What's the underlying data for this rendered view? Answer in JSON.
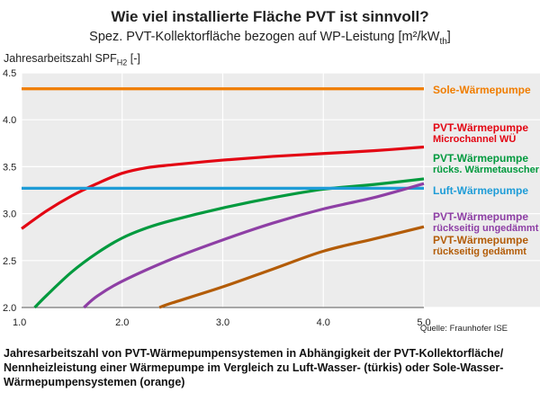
{
  "chart_data": {
    "type": "line",
    "title": "Wie viel installierte Fläche PVT ist sinnvoll?",
    "subtitle": "Spez. PVT-Kollektorfläche bezogen auf WP-Leistung [m²/kW",
    "subtitle_sub": "th",
    "subtitle_end": "]",
    "ylabel": "Jahresarbeitszahl SPF",
    "ylabel_sub": "H2",
    "ylabel_end": " [-]",
    "xlabel": "",
    "xlim": [
      1.0,
      5.0
    ],
    "ylim": [
      2.0,
      4.5
    ],
    "xticks": [
      "1.0",
      "2.0",
      "3.0",
      "4.0",
      "5.0"
    ],
    "yticks": [
      "2.0",
      "2.5",
      "3.0",
      "3.5",
      "4.0",
      "4.5"
    ],
    "grid": true,
    "series": [
      {
        "name": "Sole-Wärmepumpe",
        "color": "#F07D00",
        "label_lines": [
          "Sole-Wärmepumpe"
        ],
        "x": [
          1.0,
          5.0
        ],
        "y": [
          4.33,
          4.33
        ]
      },
      {
        "name": "PVT-Wärmepumpe Microchannel WÜ",
        "color": "#E30613",
        "label_lines": [
          "PVT-Wärmepumpe",
          "Microchannel WÜ"
        ],
        "x": [
          1.0,
          1.25,
          1.5,
          1.75,
          2.0,
          2.25,
          2.5,
          3.0,
          3.5,
          4.0,
          4.5,
          5.0
        ],
        "y": [
          2.84,
          3.03,
          3.19,
          3.32,
          3.43,
          3.49,
          3.52,
          3.57,
          3.61,
          3.64,
          3.67,
          3.71
        ]
      },
      {
        "name": "PVT-Wärmepumpe rücks. Wärmetauscher",
        "color": "#009A3E",
        "label_lines": [
          "PVT-Wärmepumpe",
          "rücks. Wärmetauscher"
        ],
        "x": [
          1.13,
          1.25,
          1.5,
          1.75,
          2.0,
          2.25,
          2.5,
          3.0,
          3.5,
          4.0,
          4.5,
          5.0
        ],
        "y": [
          2.0,
          2.13,
          2.38,
          2.58,
          2.74,
          2.85,
          2.93,
          3.06,
          3.17,
          3.26,
          3.31,
          3.37
        ]
      },
      {
        "name": "Luft-Wärmepumpe",
        "color": "#1E9CD7",
        "label_lines": [
          "Luft-Wärmepumpe"
        ],
        "x": [
          1.0,
          5.0
        ],
        "y": [
          3.27,
          3.27
        ]
      },
      {
        "name": "PVT-Wärmepumpe rückseitig ungedämmt",
        "color": "#8E3FA5",
        "label_lines": [
          "PVT-Wärmepumpe",
          "rückseitig ungedämmt"
        ],
        "x": [
          1.62,
          1.75,
          2.0,
          2.5,
          3.0,
          3.5,
          4.0,
          4.5,
          5.0
        ],
        "y": [
          2.0,
          2.12,
          2.28,
          2.52,
          2.72,
          2.9,
          3.05,
          3.17,
          3.32
        ]
      },
      {
        "name": "PVT-Wärmepumpe rückseitig gedämmt",
        "color": "#B35C07",
        "label_lines": [
          "PVT-Wärmepumpe",
          "rückseitig gedämmt"
        ],
        "x": [
          2.37,
          2.5,
          3.0,
          3.5,
          4.0,
          4.5,
          5.0
        ],
        "y": [
          2.0,
          2.05,
          2.22,
          2.41,
          2.6,
          2.73,
          2.86
        ]
      }
    ],
    "source": "Quelle: Fraunhofer ISE"
  },
  "caption": "Jahresarbeitszahl von PVT-Wärmepumpensystemen in Abhängigkeit der PVT-Kollektorfläche/ Nennheizleistung einer Wärmepumpe im Vergleich zu Luft-Wasser- (türkis) oder Sole-Wasser-Wärmepumpensystemen (orange)"
}
